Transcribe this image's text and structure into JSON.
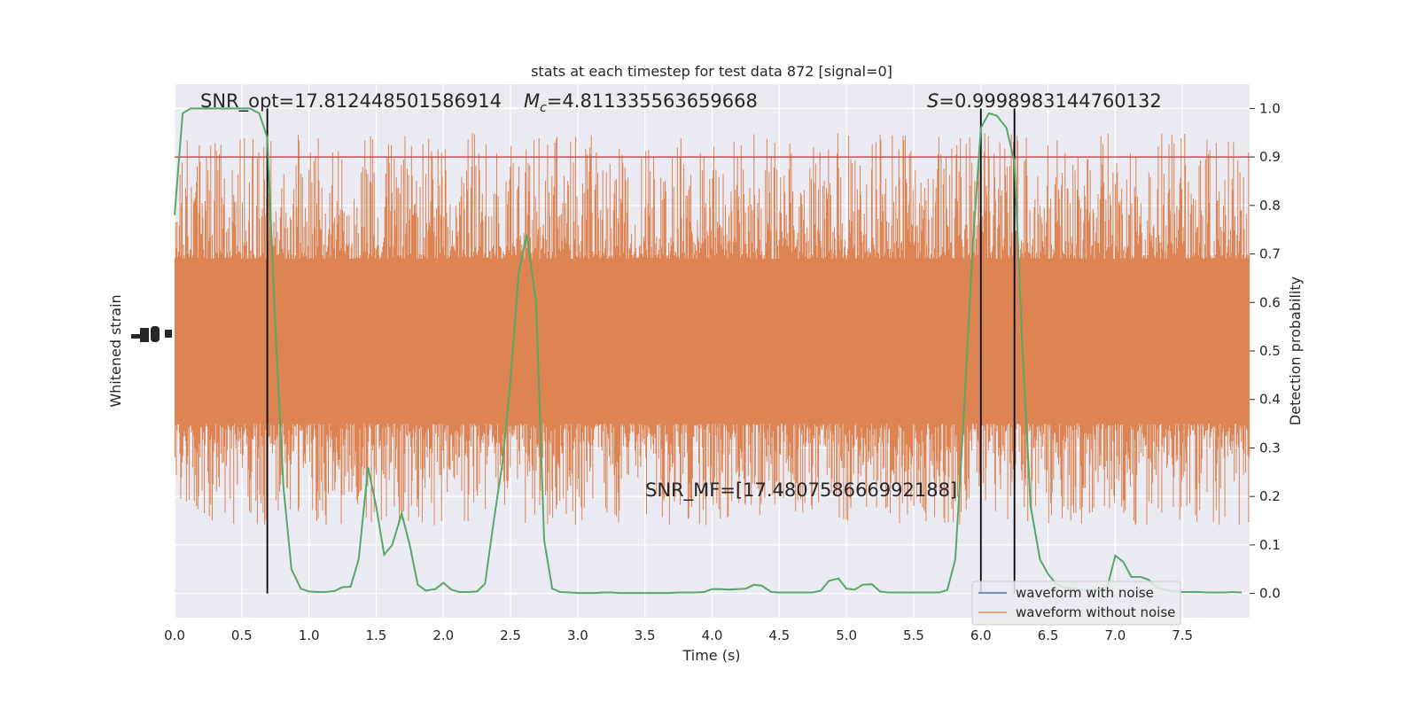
{
  "chart_data": {
    "type": "line",
    "title": "stats at each timestep for test data 872 [signal=0]",
    "xlabel": "Time (s)",
    "ylabel_left": "Whitened strain",
    "ylabel_right": "Detection probability",
    "xlim": [
      0.0,
      8.0
    ],
    "ylim_right": [
      -0.05,
      1.05
    ],
    "x_ticks": [
      "0.0",
      "0.5",
      "1.0",
      "1.5",
      "2.0",
      "2.5",
      "3.0",
      "3.5",
      "4.0",
      "4.5",
      "5.0",
      "5.5",
      "6.0",
      "6.5",
      "7.0",
      "7.5"
    ],
    "y_ticks_right": [
      "0.0",
      "0.1",
      "0.2",
      "0.3",
      "0.4",
      "0.5",
      "0.6",
      "0.7",
      "0.8",
      "0.9",
      "1.0"
    ],
    "grid": true,
    "legend_position": "bottom-right",
    "legend": [
      {
        "label": "waveform with noise",
        "color": "#4c72b0"
      },
      {
        "label": "waveform without noise",
        "color": "#dd8452"
      }
    ],
    "threshold": {
      "value": 0.9,
      "color": "#c44e52"
    },
    "vertical_lines_time": [
      0.69,
      6.0,
      6.25
    ],
    "annotations": {
      "snr_opt": "SNR_opt=17.812448501586914",
      "mc_symbol": "M",
      "mc_sub": "c",
      "mc_value": "=4.811335563659668",
      "s_symbol": "S",
      "s_value": "=0.9998983144760132",
      "snr_mf": "SNR_MF=[17.480758666992188]"
    },
    "detection_probability": {
      "name": "detection probability",
      "color": "#55a868",
      "x": [
        0.0,
        0.06,
        0.12,
        0.18,
        0.25,
        0.31,
        0.37,
        0.44,
        0.5,
        0.56,
        0.63,
        0.69,
        0.75,
        0.81,
        0.87,
        0.94,
        1.0,
        1.06,
        1.12,
        1.19,
        1.25,
        1.31,
        1.37,
        1.44,
        1.5,
        1.56,
        1.62,
        1.69,
        1.75,
        1.81,
        1.87,
        1.94,
        2.0,
        2.06,
        2.12,
        2.19,
        2.25,
        2.31,
        2.37,
        2.44,
        2.5,
        2.56,
        2.62,
        2.69,
        2.75,
        2.81,
        2.87,
        2.94,
        3.0,
        3.06,
        3.12,
        3.19,
        3.25,
        3.31,
        3.37,
        3.44,
        3.5,
        3.56,
        3.62,
        3.69,
        3.75,
        3.81,
        3.87,
        3.94,
        4.0,
        4.06,
        4.12,
        4.19,
        4.25,
        4.31,
        4.37,
        4.44,
        4.5,
        4.56,
        4.62,
        4.69,
        4.75,
        4.81,
        4.87,
        4.94,
        5.0,
        5.06,
        5.12,
        5.19,
        5.25,
        5.31,
        5.37,
        5.44,
        5.5,
        5.56,
        5.62,
        5.69,
        5.75,
        5.81,
        5.87,
        5.94,
        6.0,
        6.06,
        6.12,
        6.19,
        6.25,
        6.31,
        6.37,
        6.44,
        6.5,
        6.56,
        6.62,
        6.69,
        6.75,
        6.81,
        6.87,
        6.94,
        7.0,
        7.06,
        7.12,
        7.19,
        7.25,
        7.31,
        7.37,
        7.44,
        7.5,
        7.56,
        7.62,
        7.69,
        7.75,
        7.81,
        7.87,
        7.94
      ],
      "y": [
        0.78,
        0.99,
        1.0,
        1.0,
        1.0,
        1.0,
        1.0,
        1.0,
        1.0,
        1.0,
        0.99,
        0.94,
        0.55,
        0.22,
        0.05,
        0.01,
        0.004,
        0.003,
        0.003,
        0.005,
        0.013,
        0.014,
        0.07,
        0.26,
        0.18,
        0.08,
        0.1,
        0.165,
        0.1,
        0.018,
        0.006,
        0.009,
        0.022,
        0.008,
        0.003,
        0.003,
        0.004,
        0.02,
        0.14,
        0.27,
        0.44,
        0.66,
        0.74,
        0.6,
        0.11,
        0.01,
        0.003,
        0.002,
        0.001,
        0.001,
        0.001,
        0.002,
        0.002,
        0.001,
        0.001,
        0.001,
        0.001,
        0.001,
        0.001,
        0.001,
        0.002,
        0.002,
        0.002,
        0.003,
        0.009,
        0.009,
        0.008,
        0.009,
        0.01,
        0.018,
        0.016,
        0.003,
        0.002,
        0.002,
        0.002,
        0.002,
        0.002,
        0.006,
        0.026,
        0.031,
        0.01,
        0.008,
        0.018,
        0.019,
        0.004,
        0.002,
        0.002,
        0.002,
        0.002,
        0.002,
        0.002,
        0.002,
        0.007,
        0.07,
        0.35,
        0.72,
        0.96,
        0.99,
        0.985,
        0.96,
        0.89,
        0.5,
        0.18,
        0.07,
        0.04,
        0.02,
        0.012,
        0.01,
        0.008,
        0.006,
        0.008,
        0.012,
        0.078,
        0.065,
        0.034,
        0.034,
        0.028,
        0.012,
        0.008,
        0.004,
        0.003,
        0.003,
        0.003,
        0.002,
        0.002,
        0.002,
        0.003,
        0.002
      ]
    },
    "waveform_without_noise": {
      "name": "waveform without noise",
      "color": "#dd8452",
      "note_scale": "plotted on the detection-probability axis coordinates",
      "center": 0.52,
      "body_half_width": 0.17,
      "spike_range": [
        0.14,
        0.95
      ]
    }
  }
}
